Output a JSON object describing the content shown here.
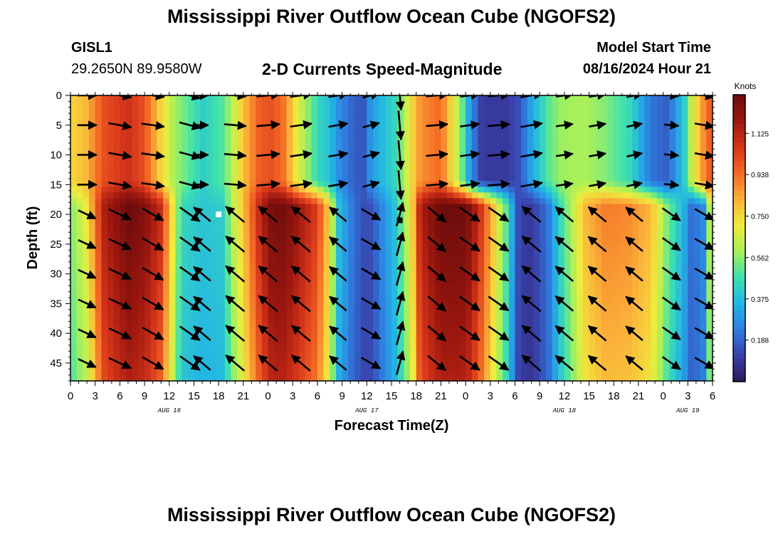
{
  "header": {
    "title": "Mississippi River Outflow Ocean Cube (NGOFS2)",
    "station": "GISL1",
    "coords": "29.2650N  89.9580W",
    "subtitle": "2-D Currents Speed-Magnitude",
    "model_start_label": "Model Start Time",
    "model_start_value": "08/16/2024 Hour 21"
  },
  "footer": {
    "title": "Mississippi River Outflow Ocean Cube (NGOFS2)"
  },
  "chart_data": {
    "type": "heatmap",
    "title": "2-D Currents Speed-Magnitude",
    "xlabel": "Forecast Time(Z)",
    "ylabel": "Depth (ft)",
    "xlim": [
      0,
      78
    ],
    "ylim": [
      48,
      0
    ],
    "x_unit": "hours since AUG 16 00Z",
    "x_tick_labels": [
      "0",
      "3",
      "6",
      "9",
      "12",
      "15",
      "18",
      "21",
      "0",
      "3",
      "6",
      "9",
      "12",
      "15",
      "18",
      "21",
      "0",
      "3",
      "6",
      "9",
      "12",
      "15",
      "18",
      "21",
      "0",
      "3",
      "6"
    ],
    "date_labels": [
      {
        "label": "AUG 16",
        "hour": 12
      },
      {
        "label": "AUG 17",
        "hour": 36
      },
      {
        "label": "AUG 18",
        "hour": 60
      },
      {
        "label": "AUG 19",
        "hour": 75
      }
    ],
    "y_ticks": [
      0,
      5,
      10,
      15,
      20,
      25,
      30,
      35,
      40,
      45
    ],
    "colorbar": {
      "label": "Knots",
      "min": 0,
      "max": 1.3,
      "ticks": [
        "0.188",
        "0.375",
        "0.562",
        "0.750",
        "0.938",
        "1.125"
      ],
      "tick_values": [
        0.188,
        0.375,
        0.562,
        0.75,
        0.938,
        1.125
      ],
      "colormap": [
        "#2a1858",
        "#3a3fa8",
        "#2f7de0",
        "#23b5e5",
        "#3de0b0",
        "#a6f05a",
        "#f0ec3c",
        "#fbb23a",
        "#f46a25",
        "#d5351a",
        "#9c170f",
        "#6a0c0b"
      ]
    },
    "markers": [
      {
        "hour": 18,
        "depth": 20,
        "color": "#ffffff"
      },
      {
        "hour": 40,
        "depth": 21,
        "color": "#000000"
      }
    ],
    "speed_profiles": {
      "times": [
        0,
        2,
        4,
        7,
        9,
        11,
        12.5,
        13.5,
        16,
        18.5,
        19.5,
        21,
        23,
        24.5,
        26,
        27.5,
        30,
        31.5,
        32.5,
        34,
        35.5,
        36.5,
        39.5,
        41.5,
        42.5,
        45,
        47.5,
        48.5,
        50,
        53,
        54.5,
        56,
        58,
        59.5,
        62.5,
        65,
        68,
        70.5,
        72.5,
        74.5,
        75.5,
        77,
        78
      ],
      "surface": [
        0.75,
        0.82,
        1.0,
        1.08,
        1.0,
        0.75,
        0.6,
        0.55,
        0.42,
        0.5,
        0.6,
        0.8,
        0.98,
        1.0,
        0.92,
        0.7,
        0.45,
        0.38,
        0.28,
        0.2,
        0.15,
        0.3,
        0.45,
        0.75,
        0.88,
        0.95,
        0.55,
        0.3,
        0.1,
        0.1,
        0.15,
        0.32,
        0.5,
        0.58,
        0.6,
        0.55,
        0.45,
        0.22,
        0.18,
        0.4,
        0.65,
        0.9,
        1.0
      ],
      "deep": [
        0.55,
        0.72,
        1.15,
        1.3,
        1.25,
        1.1,
        0.7,
        0.45,
        0.4,
        0.42,
        0.6,
        0.8,
        1.12,
        1.28,
        1.28,
        1.2,
        1.05,
        0.75,
        0.4,
        0.25,
        0.15,
        0.15,
        0.4,
        0.75,
        1.15,
        1.3,
        1.3,
        1.25,
        1.05,
        0.5,
        0.12,
        0.1,
        0.22,
        0.45,
        0.82,
        0.92,
        0.9,
        0.82,
        0.55,
        0.35,
        0.2,
        0.28,
        0.8
      ]
    },
    "vectors": {
      "upper": {
        "depths": [
          0,
          5,
          10,
          15
        ],
        "times": [
          2,
          6,
          10,
          14.5,
          16,
          20,
          24,
          28,
          32.5,
          36.5,
          40,
          44.5,
          48.5,
          52,
          56,
          60,
          64,
          68.5,
          73,
          77
        ],
        "angles_deg": [
          0,
          -10,
          -8,
          -15,
          0,
          -5,
          5,
          8,
          10,
          15,
          -85,
          5,
          8,
          5,
          10,
          8,
          10,
          12,
          -5,
          -10
        ],
        "lengths_kt": [
          0.8,
          0.95,
          0.95,
          0.9,
          0.5,
          0.9,
          0.95,
          0.9,
          0.8,
          0.7,
          1.2,
          0.9,
          0.8,
          0.9,
          0.9,
          0.7,
          0.7,
          0.65,
          0.6,
          0.8
        ]
      },
      "lower": {
        "depths": [
          20,
          25,
          30,
          35,
          40,
          45
        ],
        "times": [
          2,
          6,
          10,
          14.5,
          16,
          20,
          24,
          28,
          32.5,
          36.5,
          40,
          44.5,
          48.5,
          52,
          56,
          60,
          64,
          68.5,
          73,
          77
        ],
        "angles_deg": [
          -25,
          -25,
          -30,
          -35,
          140,
          140,
          140,
          140,
          140,
          -30,
          75,
          -40,
          -35,
          -35,
          140,
          140,
          140,
          140,
          -35,
          -30
        ],
        "lengths_kt": [
          0.8,
          1.0,
          1.0,
          1.0,
          0.9,
          1.0,
          1.0,
          1.0,
          0.9,
          0.9,
          1.0,
          0.95,
          1.0,
          1.0,
          1.0,
          0.95,
          0.95,
          0.9,
          0.9,
          0.9
        ]
      }
    }
  }
}
